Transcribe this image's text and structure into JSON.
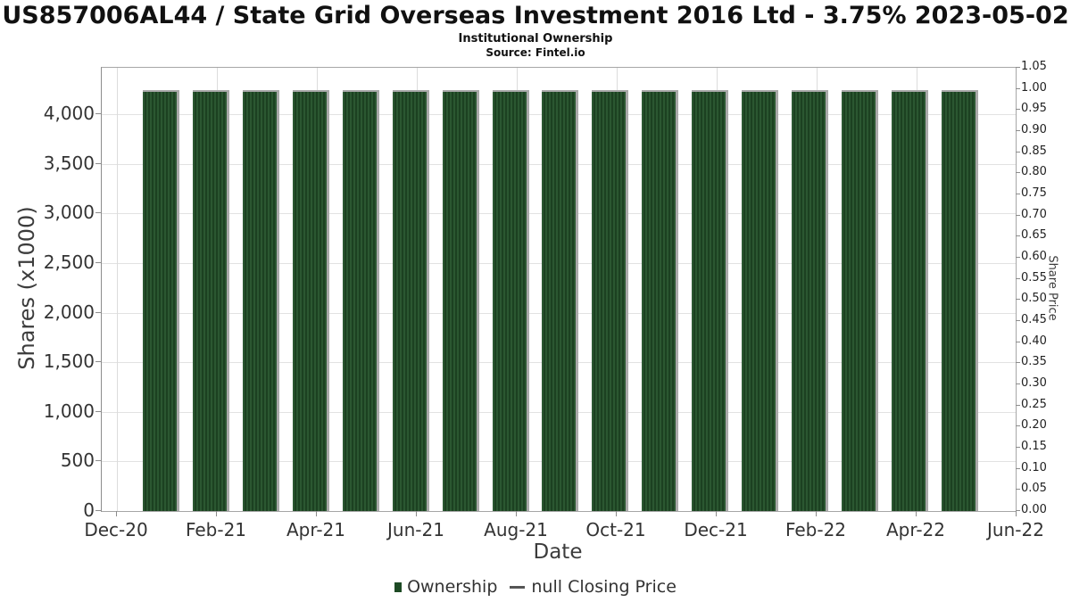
{
  "chart_data": {
    "type": "bar",
    "title": "US857006AL44 / State Grid Overseas Investment 2016 Ltd - 3.75% 2023-05-02",
    "subtitle": "Institutional Ownership",
    "source": "Source: Fintel.io",
    "xlabel": "Date",
    "ylabel": "Shares (x1000)",
    "y2label": "Share Price",
    "categories": [
      "Jan-21",
      "Feb-21",
      "Mar-21",
      "Apr-21",
      "May-21",
      "Jun-21",
      "Jul-21",
      "Aug-21",
      "Sep-21",
      "Oct-21",
      "Nov-21",
      "Dec-21",
      "Jan-22",
      "Feb-22",
      "Mar-22",
      "Apr-22",
      "May-22"
    ],
    "series": [
      {
        "name": "Ownership",
        "type": "bar",
        "color": "#1c4121",
        "values": [
          4244,
          4244,
          4244,
          4244,
          4244,
          4244,
          4244,
          4244,
          4244,
          4244,
          4244,
          4244,
          4244,
          4244,
          4244,
          4244,
          4244
        ]
      },
      {
        "name": "null Closing Price",
        "type": "line",
        "color": "#555555",
        "values": []
      }
    ],
    "ylim": [
      0,
      4470
    ],
    "y2lim": [
      0,
      1.05
    ],
    "x_tick_labels": [
      "Dec-20",
      "Feb-21",
      "Apr-21",
      "Jun-21",
      "Aug-21",
      "Oct-21",
      "Dec-21",
      "Feb-22",
      "Apr-22",
      "Jun-22"
    ],
    "y_tick_values": [
      0,
      500,
      1000,
      1500,
      2000,
      2500,
      3000,
      3500,
      4000
    ],
    "y_tick_labels": [
      "0",
      "500",
      "1,000",
      "1,500",
      "2,000",
      "2,500",
      "3,000",
      "3,500",
      "4,000"
    ],
    "y2_tick_values": [
      0,
      0.05,
      0.1,
      0.15,
      0.2,
      0.25,
      0.3,
      0.35,
      0.4,
      0.45,
      0.5,
      0.55,
      0.6,
      0.65,
      0.7,
      0.75,
      0.8,
      0.85,
      0.9,
      0.95,
      1.0,
      1.05
    ],
    "y2_tick_labels": [
      "0.00",
      "0.05",
      "0.10",
      "0.15",
      "0.20",
      "0.25",
      "0.30",
      "0.35",
      "0.40",
      "0.45",
      "0.50",
      "0.55",
      "0.60",
      "0.65",
      "0.70",
      "0.75",
      "0.80",
      "0.85",
      "0.90",
      "0.95",
      "1.00",
      "1.05"
    ],
    "grid": true,
    "legend_position": "bottom"
  },
  "legend": {
    "items": [
      {
        "label": "Ownership",
        "marker": "square",
        "color": "#1d4a24"
      },
      {
        "label": "null Closing Price",
        "marker": "line",
        "color": "#555555"
      }
    ]
  }
}
